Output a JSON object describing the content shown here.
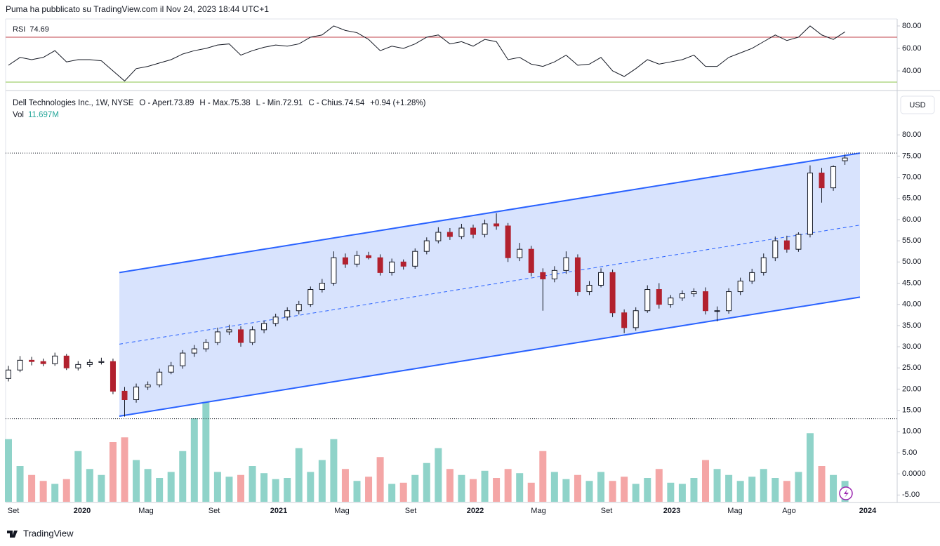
{
  "header": {
    "published": "Puma ha pubblicato su TradingView.com il Nov 24, 2023 18:44 UTC+1",
    "symbol": "Dell Technologies Inc., 1W, NYSE",
    "ohlc_labels": [
      "O - Apert.",
      "H - Max.",
      "L - Min.",
      "C - Chius."
    ],
    "change": "+0.94 (+1.28%)",
    "volume_label": "Vol",
    "volume": "11.697M",
    "currency": "USD",
    "brand": "TradingView"
  },
  "chart_data": [
    {
      "type": "candlestick",
      "ylim": [
        -6.6,
        89.8
      ],
      "yticks": [
        {
          "value": 80,
          "label": "80.00"
        },
        {
          "value": 75,
          "label": "75.00"
        },
        {
          "value": 70,
          "label": "70.00"
        },
        {
          "value": 65,
          "label": "65.00"
        },
        {
          "value": 60,
          "label": "60.00"
        },
        {
          "value": 55,
          "label": "55.00"
        },
        {
          "value": 50,
          "label": "50.00"
        },
        {
          "value": 45,
          "label": "45.00"
        },
        {
          "value": 40,
          "label": "40.00"
        },
        {
          "value": 35,
          "label": "35.00"
        },
        {
          "value": 30,
          "label": "30.00"
        },
        {
          "value": 25,
          "label": "25.00"
        },
        {
          "value": 20,
          "label": "20.00"
        },
        {
          "value": 15,
          "label": "15.00"
        },
        {
          "value": 10,
          "label": "10.00"
        },
        {
          "value": 5,
          "label": "5.00"
        },
        {
          "value": 0,
          "label": "0.0000"
        },
        {
          "value": -5,
          "label": "-5.00"
        }
      ],
      "x_labels": [
        "Set",
        "2020",
        "Mag",
        "Set",
        "2021",
        "Mag",
        "Set",
        "2022",
        "Mag",
        "Set",
        "2023",
        "Mag",
        "Ago",
        "2024"
      ],
      "up_color": "#ffffff",
      "down_color": "#b2212e",
      "wick_color": "#131722",
      "volume_up_color": "#8fd3c9",
      "volume_down_color": "#f4a6a6",
      "open": [
        22.5,
        24.5,
        26.8,
        26.5,
        26.0,
        27.8,
        25.0,
        25.8,
        26.3,
        26.5,
        19.5,
        17.5,
        20.5,
        21.0,
        24.0,
        25.5,
        28.5,
        29.5,
        31.0,
        33.5,
        34.0,
        31.0,
        34.0,
        35.5,
        37.0,
        38.5,
        40.0,
        43.5,
        45.0,
        51.0,
        49.5,
        51.5,
        51.0,
        47.5,
        50.0,
        49.0,
        52.5,
        55.0,
        57.0,
        56.0,
        58.0,
        56.5,
        59.0,
        58.5,
        51.0,
        53.0,
        47.5,
        46.0,
        48.0,
        51.0,
        43.0,
        44.5,
        47.5,
        38.0,
        34.5,
        38.5,
        43.5,
        40.0,
        41.5,
        42.5,
        43.0,
        38.5,
        38.5,
        43.0,
        45.5,
        47.5,
        51.0,
        55.0,
        53.0,
        56.5,
        71.0,
        67.5,
        73.89
      ],
      "high": [
        25.5,
        27.8,
        27.6,
        27.2,
        28.6,
        28.3,
        26.6,
        27.0,
        27.4,
        27.2,
        20.5,
        21.3,
        21.8,
        24.8,
        26.4,
        29.2,
        30.4,
        31.8,
        34.5,
        35.2,
        34.8,
        34.8,
        36.2,
        37.8,
        39.3,
        40.8,
        44.2,
        46.0,
        52.5,
        52.0,
        52.6,
        52.4,
        51.8,
        50.8,
        50.6,
        53.2,
        55.8,
        58.2,
        58.0,
        59.0,
        58.8,
        60.0,
        61.5,
        59.2,
        54.5,
        53.8,
        48.5,
        49.0,
        52.5,
        51.8,
        45.5,
        48.5,
        48.2,
        38.8,
        39.3,
        44.5,
        45.0,
        42.2,
        43.3,
        43.8,
        44.0,
        39.5,
        43.8,
        46.3,
        48.4,
        52.0,
        56.0,
        56.2,
        57.0,
        72.8,
        72.2,
        72.8,
        75.38
      ],
      "low": [
        21.8,
        24.0,
        25.6,
        25.4,
        25.5,
        24.5,
        24.4,
        25.2,
        25.8,
        18.8,
        13.5,
        16.8,
        19.8,
        20.4,
        23.5,
        24.8,
        27.6,
        28.8,
        30.4,
        32.8,
        30.0,
        30.4,
        33.2,
        34.8,
        36.2,
        37.6,
        39.4,
        42.8,
        44.4,
        48.6,
        48.8,
        50.6,
        46.8,
        46.8,
        48.2,
        48.4,
        51.8,
        54.4,
        55.2,
        55.4,
        55.6,
        55.8,
        57.6,
        50.0,
        50.2,
        46.6,
        38.5,
        45.2,
        47.2,
        42.0,
        42.2,
        44.0,
        37.0,
        33.2,
        33.8,
        38.0,
        39.0,
        39.2,
        40.8,
        41.8,
        37.6,
        36.0,
        37.8,
        42.2,
        44.8,
        46.8,
        50.2,
        52.2,
        52.4,
        55.8,
        64.0,
        66.8,
        72.91
      ],
      "close": [
        24.5,
        26.8,
        26.5,
        26.0,
        27.8,
        25.0,
        25.8,
        26.3,
        26.5,
        19.5,
        17.5,
        20.5,
        21.0,
        24.0,
        25.5,
        28.5,
        29.5,
        31.0,
        33.5,
        34.0,
        31.0,
        34.0,
        35.5,
        37.0,
        38.5,
        40.0,
        43.5,
        45.0,
        51.0,
        49.5,
        51.5,
        51.0,
        47.5,
        50.0,
        49.0,
        52.5,
        55.0,
        57.0,
        56.0,
        58.0,
        56.5,
        59.0,
        58.5,
        51.0,
        53.0,
        47.5,
        46.0,
        48.0,
        51.0,
        43.0,
        44.5,
        47.5,
        38.0,
        34.5,
        38.5,
        43.5,
        40.0,
        41.5,
        42.5,
        43.0,
        38.5,
        38.5,
        43.0,
        45.5,
        47.5,
        51.0,
        55.0,
        53.0,
        56.5,
        71.0,
        67.5,
        72.5,
        74.54
      ],
      "volume": [
        10.5,
        6.0,
        4.5,
        3.5,
        3.0,
        3.8,
        8.5,
        5.5,
        4.5,
        10.0,
        10.8,
        7.0,
        5.5,
        4.0,
        5.0,
        8.5,
        14.0,
        17.0,
        5.0,
        4.2,
        4.5,
        6.0,
        4.8,
        3.8,
        4.0,
        9.0,
        5.0,
        7.0,
        10.5,
        5.5,
        3.5,
        4.2,
        7.5,
        3.0,
        3.2,
        4.5,
        6.5,
        9.0,
        5.5,
        4.5,
        3.8,
        5.2,
        4.0,
        5.5,
        4.8,
        3.2,
        8.5,
        5.0,
        3.8,
        4.5,
        3.5,
        5.0,
        3.5,
        4.2,
        3.0,
        4.0,
        5.5,
        3.2,
        3.0,
        4.0,
        7.0,
        5.5,
        4.5,
        3.5,
        4.2,
        5.5,
        4.0,
        3.5,
        5.0,
        11.5,
        6.0,
        4.5,
        3.5
      ],
      "channel": {
        "upper": [
          47.5,
          75.7
        ],
        "middle": [
          30.6,
          58.7
        ],
        "lower": [
          13.6,
          41.7
        ],
        "color": "#2962ff",
        "fill": "#d4e0fd"
      },
      "horizontal_lines": [
        75.7,
        13.0
      ]
    },
    {
      "type": "line",
      "name": "RSI",
      "color": "#131722",
      "ylim": [
        25,
        85.6
      ],
      "yticks": [
        {
          "value": 80,
          "label": "80.00"
        },
        {
          "value": 60,
          "label": "60.00"
        },
        {
          "value": 40,
          "label": "40.00"
        }
      ],
      "levels": [
        {
          "value": 70,
          "color": "#c2434b"
        },
        {
          "value": 30,
          "color": "#8bc34a"
        }
      ],
      "values": [
        45,
        52,
        50,
        52,
        58,
        48,
        50,
        50,
        49,
        40,
        31,
        42,
        44,
        47,
        50,
        55,
        58,
        60,
        63,
        64,
        54,
        58,
        61,
        63,
        62,
        64,
        70,
        72,
        80,
        76,
        74,
        68,
        58,
        62,
        60,
        64,
        70,
        72,
        64,
        66,
        62,
        68,
        66,
        50,
        52,
        46,
        44,
        48,
        54,
        45,
        46,
        52,
        40,
        35,
        42,
        50,
        46,
        48,
        50,
        54,
        44,
        44,
        52,
        56,
        60,
        66,
        72,
        67,
        70,
        80,
        72,
        68,
        74.69
      ]
    }
  ]
}
